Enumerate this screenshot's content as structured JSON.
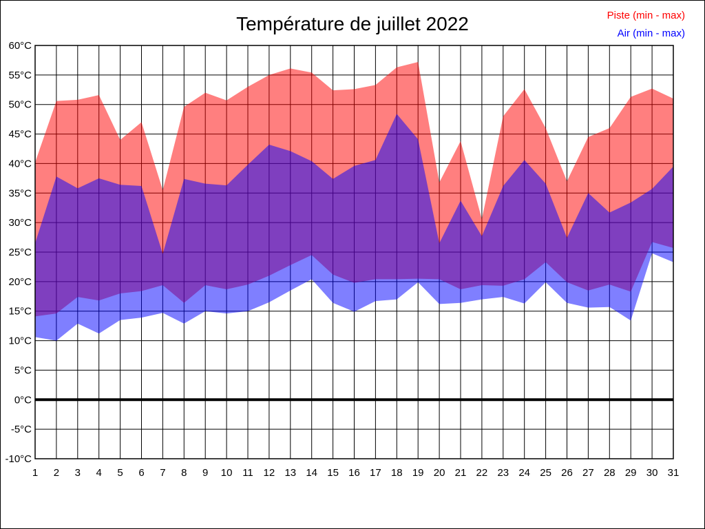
{
  "page": {
    "background": "#ffffff",
    "border_color": "#000000"
  },
  "chart_data": {
    "type": "area",
    "title": "Température de juillet 2022",
    "xlabel": "",
    "ylabel": "°C",
    "x": [
      1,
      2,
      3,
      4,
      5,
      6,
      7,
      8,
      9,
      10,
      11,
      12,
      13,
      14,
      15,
      16,
      17,
      18,
      19,
      20,
      21,
      22,
      23,
      24,
      25,
      26,
      27,
      28,
      29,
      30,
      31
    ],
    "ylim": [
      -10,
      60
    ],
    "y_tick_step": 5,
    "y_tick_suffix": "°C",
    "grid": true,
    "grid_color": "#000000",
    "zero_line_value": 0,
    "legend_position": "top-right",
    "series": [
      {
        "name": "Piste (min - max)",
        "color": "#ff0000",
        "opacity": 0.5,
        "min": [
          14.1,
          14.6,
          17.4,
          16.8,
          18.0,
          18.4,
          19.4,
          16.4,
          19.4,
          18.7,
          19.5,
          21.0,
          22.8,
          24.5,
          21.2,
          19.8,
          20.4,
          20.4,
          20.5,
          20.4,
          18.7,
          19.4,
          19.3,
          20.4,
          23.3,
          19.9,
          18.5,
          19.5,
          18.3,
          26.7,
          25.7
        ],
        "max": [
          40.2,
          50.6,
          50.8,
          51.6,
          44.0,
          47.0,
          35.5,
          49.6,
          52.0,
          50.7,
          53.0,
          55.0,
          56.1,
          55.4,
          52.4,
          52.6,
          53.3,
          56.3,
          57.2,
          36.8,
          43.8,
          30.6,
          48.0,
          52.6,
          46.0,
          37.0,
          44.5,
          46.0,
          51.3,
          52.7,
          51.0
        ]
      },
      {
        "name": "Air (min - max)",
        "color": "#0000ff",
        "opacity": 0.5,
        "min": [
          10.6,
          10.0,
          12.9,
          11.2,
          13.5,
          13.9,
          14.7,
          12.9,
          15.0,
          14.6,
          15.0,
          16.5,
          18.5,
          20.4,
          16.4,
          14.9,
          16.7,
          17.0,
          19.9,
          16.2,
          16.4,
          17.0,
          17.4,
          16.3,
          19.9,
          16.4,
          15.6,
          15.7,
          13.4,
          24.8,
          23.3
        ],
        "max": [
          26.5,
          37.8,
          35.8,
          37.5,
          36.4,
          36.2,
          24.7,
          37.4,
          36.6,
          36.3,
          39.8,
          43.2,
          42.1,
          40.4,
          37.4,
          39.6,
          40.6,
          48.4,
          44.1,
          26.5,
          33.7,
          27.7,
          36.2,
          40.6,
          36.6,
          27.4,
          35.0,
          31.7,
          33.4,
          35.7,
          39.5
        ]
      }
    ]
  }
}
